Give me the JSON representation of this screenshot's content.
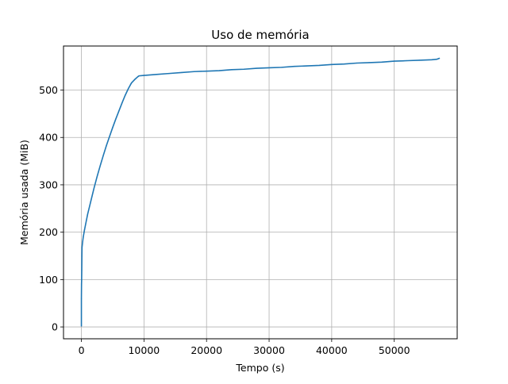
{
  "chart_data": {
    "type": "line",
    "title": "Uso de memória",
    "xlabel": "Tempo (s)",
    "ylabel": "Memória usada (MiB)",
    "xlim": [
      -2860,
      60060
    ],
    "ylim": [
      -25,
      593
    ],
    "grid": true,
    "xticks": [
      0,
      10000,
      20000,
      30000,
      40000,
      50000
    ],
    "xtick_labels": [
      "0",
      "10000",
      "20000",
      "30000",
      "40000",
      "50000"
    ],
    "yticks": [
      0,
      100,
      200,
      300,
      400,
      500
    ],
    "ytick_labels": [
      "0",
      "100",
      "200",
      "300",
      "400",
      "500"
    ],
    "line_color": "#1f77b4",
    "series": [
      {
        "x": [
          0,
          0,
          20,
          40,
          60,
          80,
          100,
          150,
          200,
          300,
          500,
          800,
          1000,
          1500,
          2000,
          2500,
          3000,
          3500,
          4000,
          4500,
          5000,
          5500,
          6000,
          6500,
          7000,
          7500,
          8000,
          8500,
          9000,
          9200,
          10000,
          12000,
          14000,
          16000,
          18000,
          20000,
          22000,
          24000,
          26000,
          28000,
          30000,
          32000,
          34000,
          36000,
          38000,
          40000,
          42000,
          44000,
          46000,
          48000,
          50000,
          52000,
          54000,
          56000,
          56800,
          57200
        ],
        "y": [
          2,
          60,
          90,
          100,
          120,
          150,
          168,
          174,
          180,
          190,
          205,
          225,
          238,
          265,
          292,
          317,
          340,
          362,
          383,
          402,
          421,
          439,
          456,
          473,
          489,
          503,
          515,
          522,
          528,
          530,
          531,
          533,
          535,
          537,
          539,
          540,
          541,
          543,
          544,
          546,
          547,
          548,
          550,
          551,
          552,
          554,
          555,
          557,
          558,
          559,
          561,
          562,
          563,
          564,
          565,
          567
        ]
      }
    ]
  }
}
